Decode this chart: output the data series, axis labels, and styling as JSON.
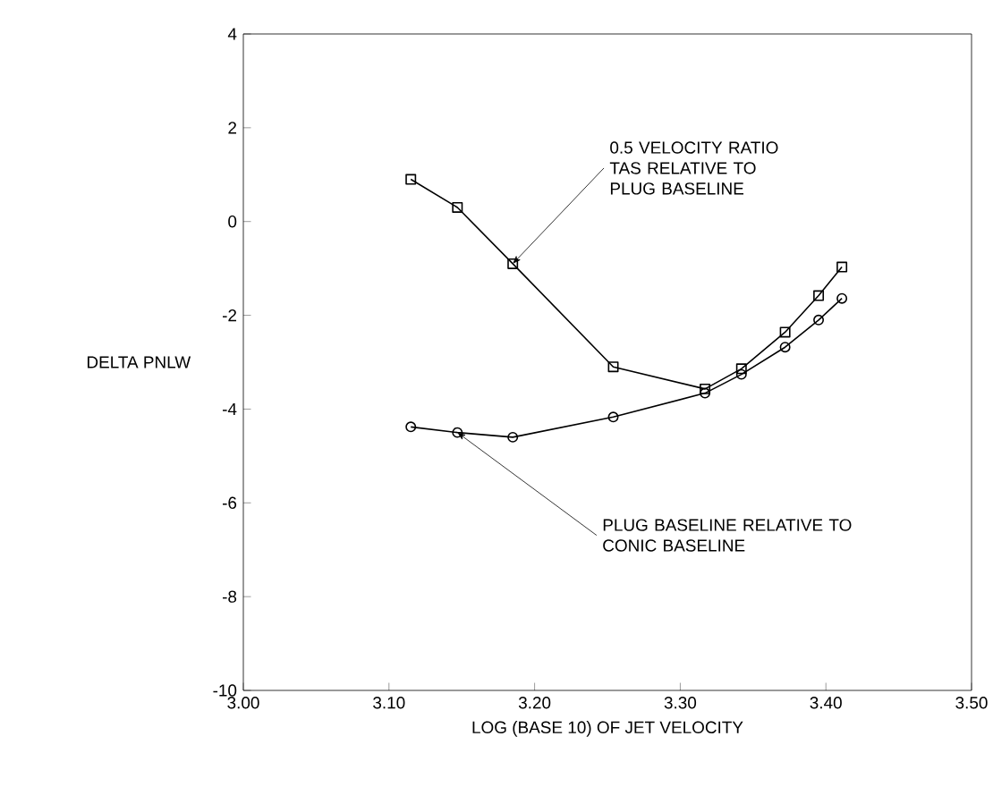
{
  "chart_data": {
    "type": "line",
    "xlabel": "LOG (BASE 10) OF JET VELOCITY",
    "ylabel": "DELTA PNLW",
    "x": [
      3.115,
      3.147,
      3.185,
      3.254,
      3.317,
      3.342,
      3.372,
      3.395,
      3.411
    ],
    "series": [
      {
        "color": "#000000",
        "marker": "square",
        "values": [
          0.9,
          0.3,
          -0.9,
          -3.1,
          -3.57,
          -3.14,
          -2.36,
          -1.58,
          -0.97
        ]
      },
      {
        "color": "#000000",
        "marker": "circle",
        "values": [
          -4.38,
          -4.5,
          -4.6,
          -4.17,
          -3.66,
          -3.26,
          -2.68,
          -2.1,
          -1.64
        ]
      }
    ],
    "xlim": [
      3.0,
      3.5
    ],
    "ylim": [
      -10,
      4
    ],
    "xticks": [
      {
        "value": 3.0,
        "label": "3.00"
      },
      {
        "value": 3.1,
        "label": "3.10"
      },
      {
        "value": 3.2,
        "label": "3.20"
      },
      {
        "value": 3.3,
        "label": "3.30"
      },
      {
        "value": 3.4,
        "label": "3.40"
      },
      {
        "value": 3.5,
        "label": "3.50"
      }
    ],
    "yticks": [
      -10,
      -8,
      -6,
      -4,
      -2,
      0,
      2,
      4
    ],
    "grid": false,
    "annotations": [
      {
        "text": "0.5 VELOCITY RATIO TAS RELATIVE TO PLUG BASELINE",
        "x": 3.185,
        "y": -0.9
      },
      {
        "text": "PLUG BASELINE RELATIVE TO CONIC BASELINE",
        "x": 3.147,
        "y": -4.5
      }
    ]
  }
}
